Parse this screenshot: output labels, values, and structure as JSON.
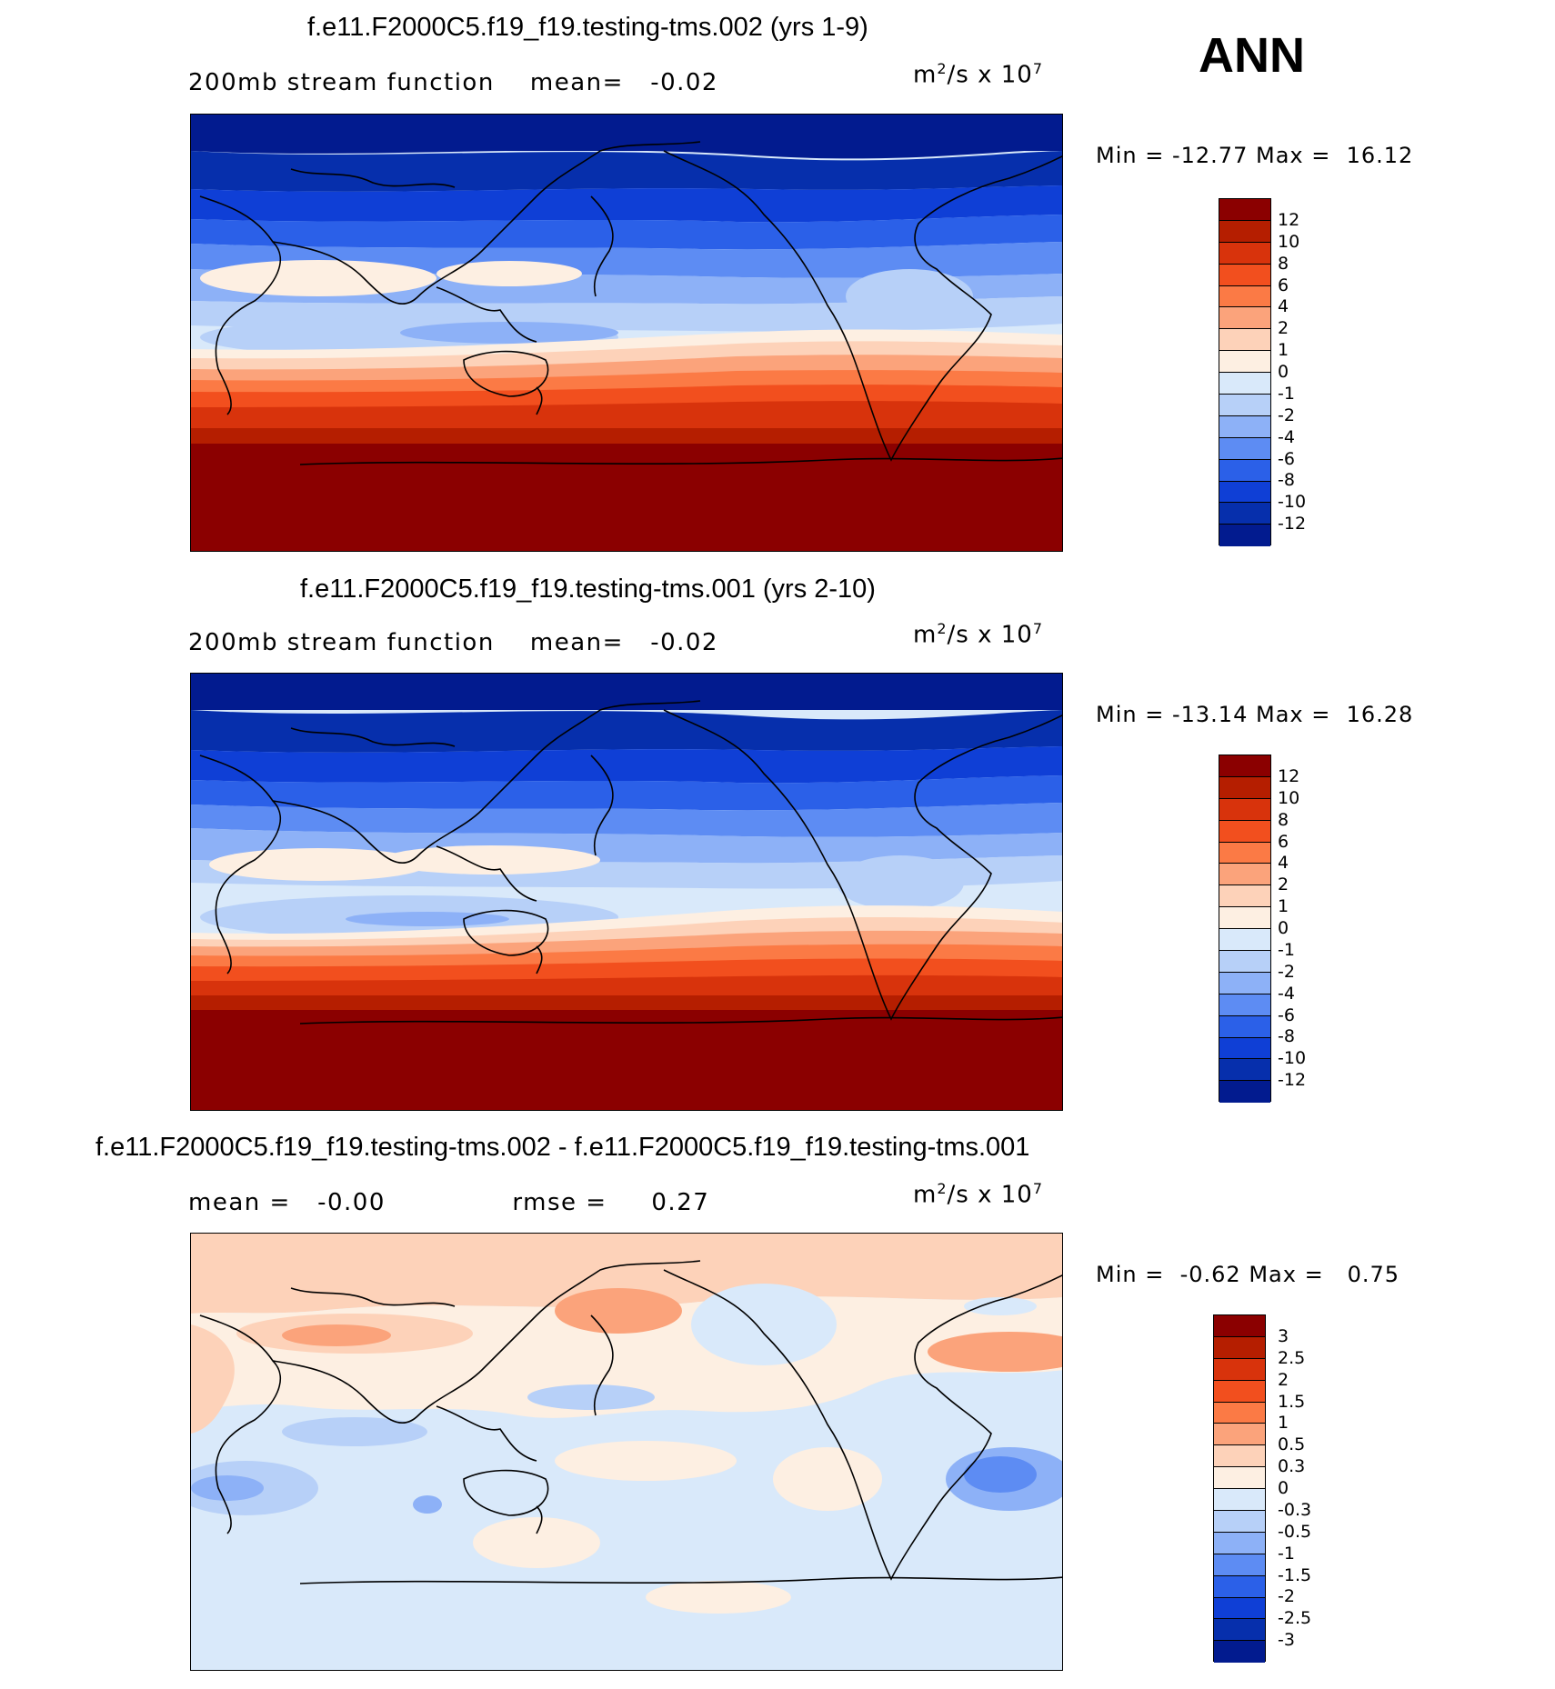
{
  "season": "ANN",
  "units": {
    "base": "m",
    "exp": "2",
    "rest": "/s  x  10",
    "power": "7"
  },
  "panels": [
    {
      "id": "test",
      "title": "f.e11.F2000C5.f19_f19.testing-tms.002 (yrs 1-9)",
      "variable": "200mb stream function",
      "mean_label": "mean=",
      "mean_value": "-0.02",
      "min_label": "Min =",
      "min_value": "-12.77",
      "max_label": "Max =",
      "max_value": "16.12",
      "colorbar_labels": [
        "12",
        "10",
        "8",
        "6",
        "4",
        "2",
        "1",
        "0",
        "-1",
        "-2",
        "-4",
        "-6",
        "-8",
        "-10",
        "-12"
      ],
      "colorbar_colors": [
        "#8b0000",
        "#b51e00",
        "#d8330c",
        "#f24f1e",
        "#fb7a45",
        "#fba37b",
        "#fdd2b9",
        "#fdefe2",
        "#d9e9fa",
        "#b7d0f8",
        "#8db1f7",
        "#5d8cf3",
        "#2b60e8",
        "#0f3fd6",
        "#062fac",
        "#021b8f"
      ]
    },
    {
      "id": "ctrl",
      "title": "f.e11.F2000C5.f19_f19.testing-tms.001 (yrs 2-10)",
      "variable": "200mb stream function",
      "mean_label": "mean=",
      "mean_value": "-0.02",
      "min_label": "Min =",
      "min_value": "-13.14",
      "max_label": "Max =",
      "max_value": "16.28",
      "colorbar_labels": [
        "12",
        "10",
        "8",
        "6",
        "4",
        "2",
        "1",
        "0",
        "-1",
        "-2",
        "-4",
        "-6",
        "-8",
        "-10",
        "-12"
      ],
      "colorbar_colors": [
        "#8b0000",
        "#b51e00",
        "#d8330c",
        "#f24f1e",
        "#fb7a45",
        "#fba37b",
        "#fdd2b9",
        "#fdefe2",
        "#d9e9fa",
        "#b7d0f8",
        "#8db1f7",
        "#5d8cf3",
        "#2b60e8",
        "#0f3fd6",
        "#062fac",
        "#021b8f"
      ]
    },
    {
      "id": "diff",
      "title": "f.e11.F2000C5.f19_f19.testing-tms.002 - f.e11.F2000C5.f19_f19.testing-tms.001",
      "mean_label": "mean =",
      "mean_value": "-0.00",
      "rmse_label": "rmse =",
      "rmse_value": "0.27",
      "min_label": "Min =",
      "min_value": "-0.62",
      "max_label": "Max =",
      "max_value": "0.75",
      "colorbar_labels": [
        "3",
        "2.5",
        "2",
        "1.5",
        "1",
        "0.5",
        "0.3",
        "0",
        "-0.3",
        "-0.5",
        "-1",
        "-1.5",
        "-2",
        "-2.5",
        "-3"
      ],
      "colorbar_colors": [
        "#8b0000",
        "#b51e00",
        "#d8330c",
        "#f24f1e",
        "#fb7a45",
        "#fba37b",
        "#fdd2b9",
        "#fdefe2",
        "#d9e9fa",
        "#b7d0f8",
        "#8db1f7",
        "#5d8cf3",
        "#2b60e8",
        "#0f3fd6",
        "#062fac",
        "#021b8f"
      ]
    }
  ]
}
